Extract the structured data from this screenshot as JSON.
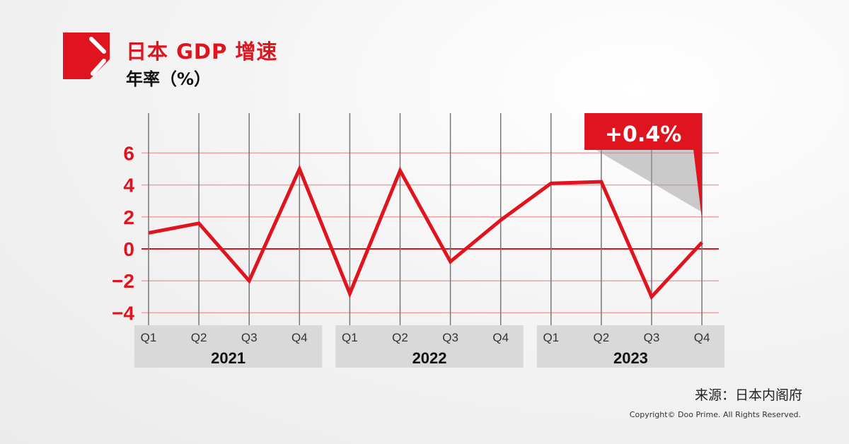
{
  "header": {
    "title": "日本 GDP 增速",
    "subtitle": "年率（%）"
  },
  "colors": {
    "accent": "#e0141e",
    "grid_vertical": "#777777",
    "grid_horizontal": "#f0a0a0",
    "year_band": "#d9d9d9"
  },
  "chart_data": {
    "type": "line",
    "title": "日本 GDP 增速",
    "ylabel": "年率（%）",
    "ylim": [
      -4.5,
      8
    ],
    "yticks": [
      -4,
      -2,
      0,
      2,
      4,
      6
    ],
    "ytick_labels": [
      "−4",
      "−2",
      "0",
      "2",
      "4",
      "6"
    ],
    "grid": true,
    "x": [
      "Q1",
      "Q2",
      "Q3",
      "Q4",
      "Q1",
      "Q2",
      "Q3",
      "Q4",
      "Q1",
      "Q2",
      "Q3",
      "Q4"
    ],
    "years": [
      "2021",
      "2022",
      "2023"
    ],
    "series": [
      {
        "values": [
          1.0,
          1.6,
          -2.0,
          5.0,
          -2.8,
          4.9,
          -0.8,
          1.8,
          4.1,
          4.2,
          -3.0,
          0.4
        ]
      }
    ],
    "annotation": "+0.4%"
  },
  "footer": {
    "source": "来源：日本内阁府",
    "copyright": "Copyright© Doo Prime. All Rights Reserved."
  }
}
